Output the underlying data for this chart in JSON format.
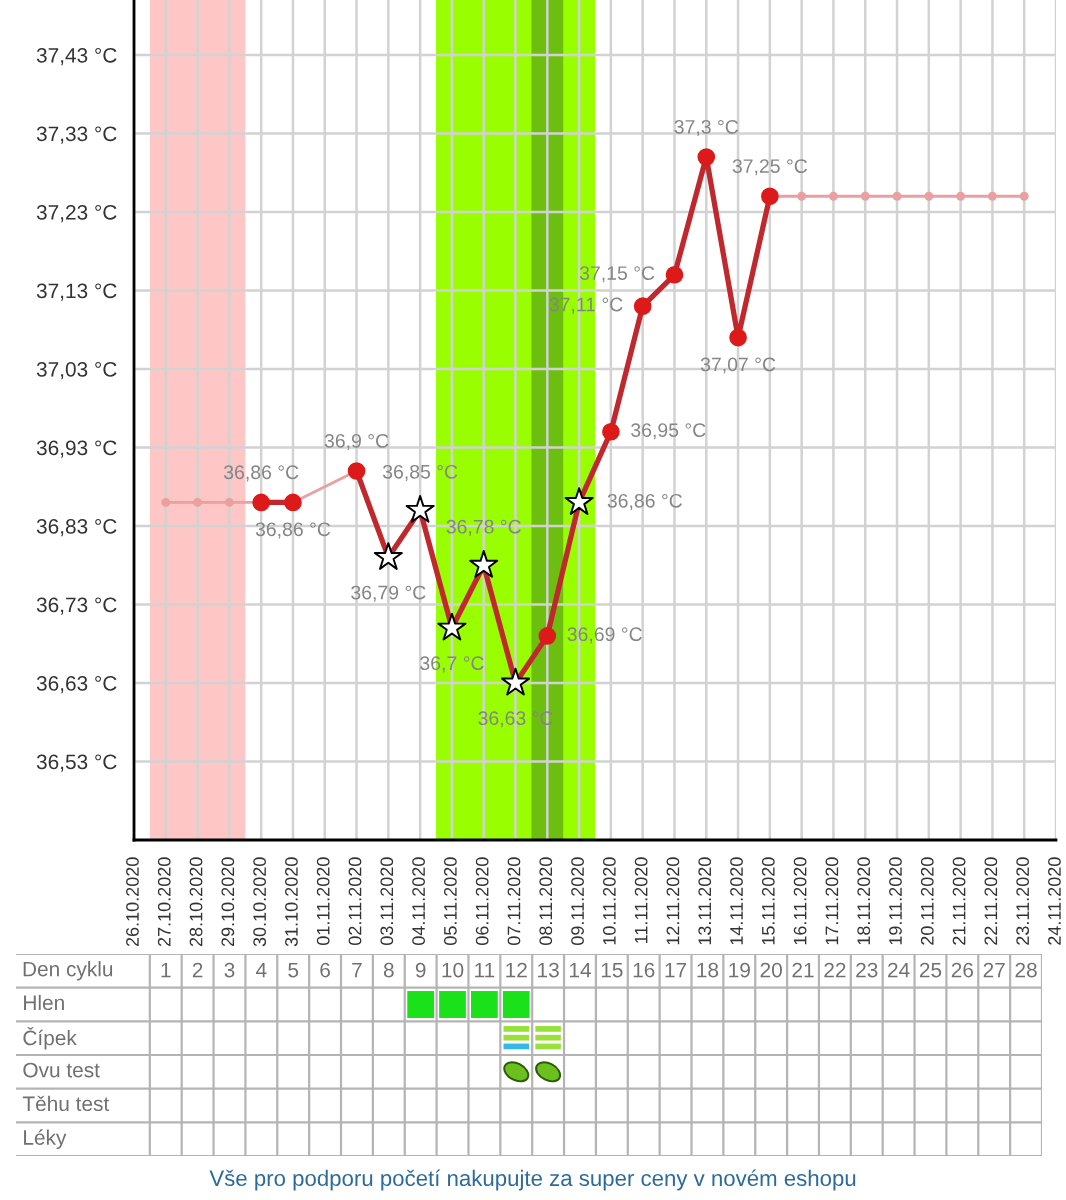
{
  "chart_data": [
    {
      "type": "line",
      "series": [
        {
          "type": "line",
          "color": "#e8a0a0",
          "marker": "circle",
          "x": [
            "2020-10-27",
            "2020-10-28",
            "2020-10-29",
            "2020-10-30",
            "2020-10-31",
            "2020-11-02",
            "2020-11-03",
            "2020-11-15",
            "2020-11-16",
            "2020-11-17",
            "2020-11-18",
            "2020-11-19",
            "2020-11-20",
            "2020-11-21",
            "2020-11-22",
            "2020-11-23"
          ],
          "values": [
            36.86,
            36.86,
            36.86,
            36.86,
            36.86,
            36.9,
            null,
            37.25,
            37.25,
            37.25,
            37.25,
            37.25,
            37.25,
            37.25,
            37.25,
            37.25
          ]
        },
        {
          "type": "line",
          "color": "#c0282d",
          "marker": "none",
          "x": [
            "2020-10-30",
            "2020-10-31",
            "2020-11-01",
            "2020-11-02",
            "2020-11-03",
            "2020-11-04",
            "2020-11-05",
            "2020-11-06",
            "2020-11-07",
            "2020-11-08",
            "2020-11-09",
            "2020-11-10",
            "2020-11-11",
            "2020-11-12",
            "2020-11-13",
            "2020-11-14",
            "2020-11-15"
          ],
          "values": [
            36.86,
            36.86,
            null,
            36.9,
            36.79,
            36.85,
            36.7,
            36.78,
            36.63,
            36.69,
            36.86,
            36.95,
            37.11,
            37.15,
            37.3,
            37.07,
            37.25
          ],
          "value_labels": [
            "36,86 °C",
            "36,86 °C",
            null,
            "36,9 °C",
            "36,79 °C",
            "36,85 °C",
            "36,7 °C",
            "36,78 °C",
            "36,63 °C",
            "36,69 °C",
            "36,86 °C",
            "36,95 °C",
            "37,11 °C",
            "37,15 °C",
            "37,3 °C",
            "37,07 °C",
            "37,25 °C"
          ]
        },
        {
          "type": "scatter",
          "color": "#dd1a1a",
          "marker": "circle",
          "x": [
            "2020-10-30",
            "2020-10-31",
            "2020-11-02",
            "2020-11-08",
            "2020-11-10",
            "2020-11-11",
            "2020-11-12",
            "2020-11-13",
            "2020-11-14",
            "2020-11-15"
          ],
          "values": [
            36.86,
            36.86,
            36.9,
            36.69,
            36.95,
            37.11,
            37.15,
            37.3,
            37.07,
            37.25
          ]
        },
        {
          "type": "scatter",
          "color": "#ffffff",
          "marker": "star",
          "x": [
            "2020-11-03",
            "2020-11-04",
            "2020-11-05",
            "2020-11-06",
            "2020-11-07",
            "2020-11-09"
          ],
          "values": [
            36.79,
            36.85,
            36.7,
            36.78,
            36.63,
            36.86
          ]
        }
      ],
      "xlim": [
        "2020-10-26",
        "2020-11-24"
      ],
      "xticks": [
        {
          "value": "2020-10-26",
          "label": "26.10.2020"
        },
        {
          "value": "2020-10-27",
          "label": "27.10.2020"
        },
        {
          "value": "2020-10-28",
          "label": "28.10.2020"
        },
        {
          "value": "2020-10-29",
          "label": "29.10.2020"
        },
        {
          "value": "2020-10-30",
          "label": "30.10.2020"
        },
        {
          "value": "2020-10-31",
          "label": "31.10.2020"
        },
        {
          "value": "2020-11-01",
          "label": "01.11.2020"
        },
        {
          "value": "2020-11-02",
          "label": "02.11.2020"
        },
        {
          "value": "2020-11-03",
          "label": "03.11.2020"
        },
        {
          "value": "2020-11-04",
          "label": "04.11.2020"
        },
        {
          "value": "2020-11-05",
          "label": "05.11.2020"
        },
        {
          "value": "2020-11-06",
          "label": "06.11.2020"
        },
        {
          "value": "2020-11-07",
          "label": "07.11.2020"
        },
        {
          "value": "2020-11-08",
          "label": "08.11.2020"
        },
        {
          "value": "2020-11-09",
          "label": "09.11.2020"
        },
        {
          "value": "2020-11-10",
          "label": "10.11.2020"
        },
        {
          "value": "2020-11-11",
          "label": "11.11.2020"
        },
        {
          "value": "2020-11-12",
          "label": "12.11.2020"
        },
        {
          "value": "2020-11-13",
          "label": "13.11.2020"
        },
        {
          "value": "2020-11-14",
          "label": "14.11.2020"
        },
        {
          "value": "2020-11-15",
          "label": "15.11.2020"
        },
        {
          "value": "2020-11-16",
          "label": "16.11.2020"
        },
        {
          "value": "2020-11-17",
          "label": "17.11.2020"
        },
        {
          "value": "2020-11-18",
          "label": "18.11.2020"
        },
        {
          "value": "2020-11-19",
          "label": "19.11.2020"
        },
        {
          "value": "2020-11-20",
          "label": "20.11.2020"
        },
        {
          "value": "2020-11-21",
          "label": "21.11.2020"
        },
        {
          "value": "2020-11-22",
          "label": "22.11.2020"
        },
        {
          "value": "2020-11-23",
          "label": "23.11.2020"
        },
        {
          "value": "2020-11-24",
          "label": "24.11.2020"
        }
      ],
      "ylim": [
        36.43,
        37.5
      ],
      "yticks": [
        {
          "value": 36.53,
          "label": "36,53 °C"
        },
        {
          "value": 36.63,
          "label": "36,63 °C"
        },
        {
          "value": 36.73,
          "label": "36,73 °C"
        },
        {
          "value": 36.83,
          "label": "36,83 °C"
        },
        {
          "value": 36.93,
          "label": "36,93 °C"
        },
        {
          "value": 37.03,
          "label": "37,03 °C"
        },
        {
          "value": 37.13,
          "label": "37,13 °C"
        },
        {
          "value": 37.23,
          "label": "37,23 °C"
        },
        {
          "value": 37.33,
          "label": "37,33 °C"
        },
        {
          "value": 37.43,
          "label": "37,43 °C"
        }
      ],
      "x2label": "Den cyklu",
      "x2lim": [
        -3.7,
        28.5
      ],
      "x2ticks": [
        1,
        2,
        3,
        4,
        5,
        6,
        7,
        8,
        9,
        10,
        11,
        12,
        13,
        14,
        15,
        16,
        17,
        18,
        19,
        20,
        21,
        22,
        23,
        24,
        25,
        26,
        27,
        28
      ],
      "grid": true,
      "bands": [
        {
          "axis": "x",
          "from": "2020-10-26T12:00",
          "to": "2020-10-29T12:00",
          "color": "#ffc6c6"
        },
        {
          "axis": "x",
          "from": "2020-11-04T12:00",
          "to": "2020-11-09T12:00",
          "color": "#99ff00"
        },
        {
          "axis": "x",
          "from": "2020-11-07T12:00",
          "to": "2020-11-08T12:00",
          "color": "#6cbf0e"
        }
      ]
    },
    {
      "type": "other",
      "y_categories": [
        "Hlen",
        "Čípek",
        "Ovu test",
        "Těhu test",
        "Léky"
      ],
      "cells": [
        [
          null,
          null,
          null,
          null,
          null,
          null,
          null,
          null,
          {
            "type": "square",
            "colors": [
              "#1be11b"
            ]
          },
          {
            "type": "square",
            "colors": [
              "#1be11b"
            ]
          },
          {
            "type": "square",
            "colors": [
              "#1be11b"
            ]
          },
          {
            "type": "square",
            "colors": [
              "#1be11b"
            ]
          },
          null,
          null,
          null,
          null,
          null,
          null,
          null,
          null,
          null,
          null,
          null,
          null,
          null,
          null,
          null,
          null
        ],
        [
          null,
          null,
          null,
          null,
          null,
          null,
          null,
          null,
          null,
          null,
          null,
          {
            "type": "stripes",
            "colors": [
              "#99e03a",
              "#99e03a",
              "#33b8ec"
            ]
          },
          {
            "type": "stripes",
            "colors": [
              "#99e03a",
              "#99e03a",
              "#99e03a"
            ]
          },
          null,
          null,
          null,
          null,
          null,
          null,
          null,
          null,
          null,
          null,
          null,
          null,
          null,
          null,
          null
        ],
        [
          null,
          null,
          null,
          null,
          null,
          null,
          null,
          null,
          null,
          null,
          null,
          {
            "type": "leaf",
            "colors": [
              "#6cc01e"
            ]
          },
          {
            "type": "leaf",
            "colors": [
              "#6cc01e"
            ]
          },
          null,
          null,
          null,
          null,
          null,
          null,
          null,
          null,
          null,
          null,
          null,
          null,
          null,
          null,
          null
        ],
        [
          null,
          null,
          null,
          null,
          null,
          null,
          null,
          null,
          null,
          null,
          null,
          null,
          null,
          null,
          null,
          null,
          null,
          null,
          null,
          null,
          null,
          null,
          null,
          null,
          null,
          null,
          null,
          null
        ],
        [
          null,
          null,
          null,
          null,
          null,
          null,
          null,
          null,
          null,
          null,
          null,
          null,
          null,
          null,
          null,
          null,
          null,
          null,
          null,
          null,
          null,
          null,
          null,
          null,
          null,
          null,
          null,
          null
        ]
      ],
      "annotations": [
        "Vše pro podporu početí nakupujte za super ceny v novém eshopu"
      ]
    }
  ]
}
